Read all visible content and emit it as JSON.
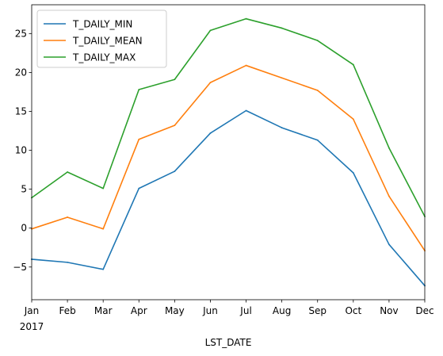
{
  "chart_data": {
    "type": "line",
    "title": "",
    "xlabel": "LST_DATE",
    "ylabel": "",
    "categories": [
      "Jan",
      "Feb",
      "Mar",
      "Apr",
      "May",
      "Jun",
      "Jul",
      "Aug",
      "Sep",
      "Oct",
      "Nov",
      "Dec"
    ],
    "year_label": "2017",
    "ylim": [
      -9.2,
      28.7
    ],
    "yticks": [
      -5,
      0,
      5,
      10,
      15,
      20,
      25
    ],
    "legend_position": "upper-left",
    "grid": false,
    "series": [
      {
        "name": "T_DAILY_MIN",
        "color": "#1f77b4",
        "values": [
          -4.0,
          -4.4,
          -5.3,
          5.1,
          7.3,
          12.2,
          15.1,
          12.9,
          11.3,
          7.1,
          -2.1,
          -7.4
        ]
      },
      {
        "name": "T_DAILY_MEAN",
        "color": "#ff7f0e",
        "values": [
          -0.1,
          1.4,
          -0.1,
          11.4,
          13.2,
          18.7,
          20.9,
          19.3,
          17.7,
          14.0,
          4.1,
          -2.9
        ]
      },
      {
        "name": "T_DAILY_MAX",
        "color": "#2ca02c",
        "values": [
          3.9,
          7.2,
          5.1,
          17.8,
          19.1,
          25.4,
          26.9,
          25.7,
          24.1,
          21.0,
          10.3,
          1.5
        ]
      }
    ]
  }
}
